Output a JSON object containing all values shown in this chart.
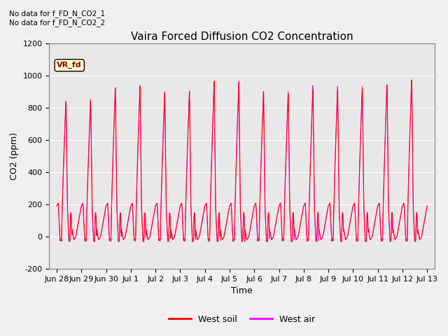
{
  "title": "Vaira Forced Diffusion CO2 Concentration",
  "xlabel": "Time",
  "ylabel": "CO2 (ppm)",
  "ylim": [
    -200,
    1200
  ],
  "yticks": [
    -200,
    0,
    200,
    400,
    600,
    800,
    1000,
    1200
  ],
  "xtick_labels": [
    "Jun 28",
    "Jun 29",
    "Jun 30",
    "Jul 1",
    "Jul 2",
    "Jul 3",
    "Jul 4",
    "Jul 5",
    "Jul 6",
    "Jul 7",
    "Jul 8",
    "Jul 9",
    "Jul 10",
    "Jul 11",
    "Jul 12",
    "Jul 13"
  ],
  "color_soil": "#ff0000",
  "color_air": "#ff00ff",
  "annotation_text": "No data for f_FD_N_CO2_1\nNo data for f_FD_N_CO2_2",
  "legend_label_soil": "West soil",
  "legend_label_air": "West air",
  "vr_fd_label": "VR_fd",
  "plot_bg_color": "#e8e8e8",
  "upper_bg_color": "#ffffff",
  "title_fontsize": 11,
  "axis_fontsize": 9,
  "tick_fontsize": 8,
  "peak_heights": [
    860,
    870,
    940,
    950,
    910,
    910,
    970,
    970,
    910,
    905,
    940,
    940,
    950,
    970,
    1000
  ],
  "line_width": 0.7
}
